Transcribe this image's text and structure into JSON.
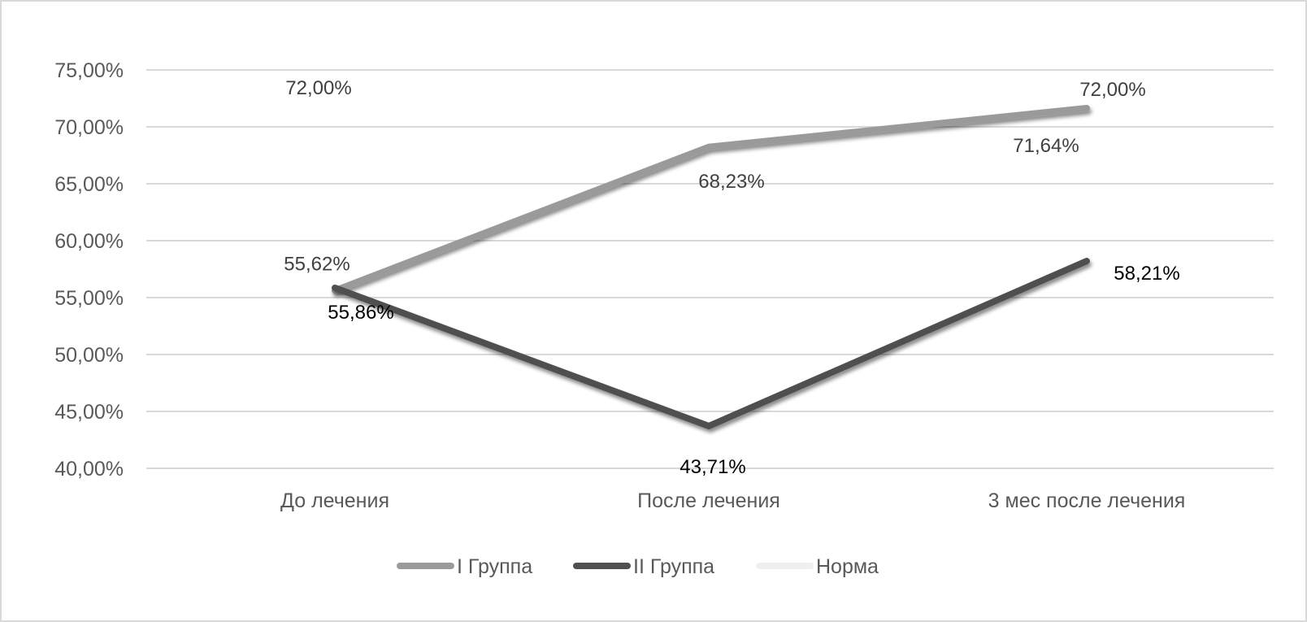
{
  "chart_data": {
    "type": "line",
    "title": "",
    "xlabel": "",
    "ylabel": "",
    "categories": [
      "До лечения",
      "После лечения",
      "3 мес после лечения"
    ],
    "ylim": [
      40,
      75
    ],
    "yticks": [
      "40,00%",
      "45,00%",
      "50,00%",
      "55,00%",
      "60,00%",
      "65,00%",
      "70,00%",
      "75,00%"
    ],
    "grid": true,
    "legend_position": "bottom",
    "series": [
      {
        "name": "I Группа",
        "values": [
          55.62,
          68.23,
          71.64
        ],
        "labels": [
          "55,62%",
          "68,23%",
          "71,64%"
        ],
        "color": "#9a9a9a",
        "label_color": "#404040"
      },
      {
        "name": "II Группа",
        "values": [
          55.86,
          43.71,
          58.21
        ],
        "labels": [
          "55,86%",
          "43,71%",
          "58,21%"
        ],
        "color": "#505050",
        "label_color": "#000000"
      },
      {
        "name": "Норма",
        "values": [
          72.0,
          72.0,
          72.0
        ],
        "labels": [
          "72,00%",
          "",
          "72,00%"
        ],
        "color": "#efefef",
        "label_color": "#404040"
      }
    ]
  }
}
